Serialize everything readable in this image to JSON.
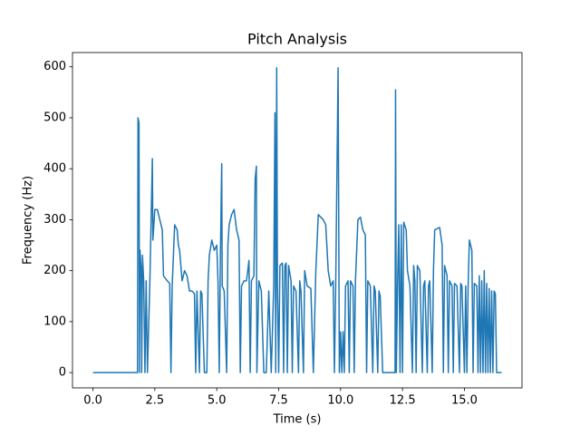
{
  "chart_data": {
    "type": "line",
    "title": "Pitch Analysis",
    "xlabel": "Time (s)",
    "ylabel": "Frequency (Hz)",
    "color": "#1f77b4",
    "x": [
      0,
      1.8,
      1.82,
      1.86,
      1.88,
      1.9,
      1.95,
      1.97,
      2.0,
      2.05,
      2.1,
      2.15,
      2.2,
      2.3,
      2.4,
      2.42,
      2.5,
      2.6,
      2.7,
      2.8,
      2.85,
      3.0,
      3.1,
      3.15,
      3.2,
      3.3,
      3.4,
      3.45,
      3.5,
      3.6,
      3.7,
      3.8,
      3.9,
      4.0,
      4.1,
      4.15,
      4.2,
      4.3,
      4.35,
      4.4,
      4.5,
      4.6,
      4.65,
      4.7,
      4.8,
      4.9,
      5.0,
      5.05,
      5.1,
      5.15,
      5.2,
      5.22,
      5.3,
      5.4,
      5.45,
      5.5,
      5.6,
      5.7,
      5.8,
      5.9,
      5.95,
      6.0,
      6.1,
      6.2,
      6.3,
      6.35,
      6.4,
      6.5,
      6.55,
      6.6,
      6.62,
      6.7,
      6.8,
      6.9,
      7.0,
      7.1,
      7.2,
      7.3,
      7.35,
      7.38,
      7.42,
      7.45,
      7.5,
      7.55,
      7.65,
      7.7,
      7.75,
      7.8,
      7.85,
      7.9,
      8.0,
      8.05,
      8.1,
      8.2,
      8.3,
      8.35,
      8.4,
      8.5,
      8.55,
      8.65,
      8.8,
      8.9,
      9.0,
      9.1,
      9.3,
      9.4,
      9.5,
      9.6,
      9.7,
      9.75,
      9.8,
      9.9,
      9.95,
      10.0,
      10.05,
      10.1,
      10.15,
      10.2,
      10.3,
      10.35,
      10.4,
      10.5,
      10.55,
      10.6,
      10.7,
      10.8,
      10.9,
      11.0,
      11.05,
      11.1,
      11.2,
      11.3,
      11.35,
      11.4,
      11.5,
      11.55,
      11.6,
      11.7,
      12.2,
      12.22,
      12.25,
      12.3,
      12.35,
      12.4,
      12.45,
      12.5,
      12.55,
      12.65,
      12.7,
      12.8,
      12.9,
      12.95,
      13.0,
      13.05,
      13.1,
      13.2,
      13.3,
      13.35,
      13.4,
      13.5,
      13.55,
      13.6,
      13.7,
      13.75,
      13.8,
      14.0,
      14.1,
      14.15,
      14.2,
      14.3,
      14.35,
      14.4,
      14.5,
      14.55,
      14.6,
      14.7,
      14.8,
      14.85,
      14.9,
      15.0,
      15.05,
      15.1,
      15.15,
      15.2,
      15.3,
      15.35,
      15.4,
      15.5,
      15.55,
      15.6,
      15.65,
      15.7,
      15.75,
      15.8,
      15.85,
      15.9,
      15.95,
      16.0,
      16.05,
      16.1,
      16.15,
      16.2,
      16.25,
      16.3,
      16.5
    ],
    "values": [
      0,
      0,
      500,
      490,
      0,
      240,
      200,
      0,
      230,
      180,
      0,
      180,
      0,
      180,
      420,
      260,
      320,
      320,
      300,
      280,
      190,
      180,
      175,
      0,
      170,
      290,
      280,
      250,
      240,
      180,
      200,
      190,
      160,
      160,
      155,
      0,
      160,
      0,
      160,
      155,
      0,
      0,
      180,
      230,
      260,
      240,
      250,
      180,
      0,
      240,
      410,
      170,
      160,
      0,
      250,
      290,
      310,
      320,
      280,
      260,
      0,
      170,
      180,
      180,
      220,
      0,
      180,
      190,
      380,
      405,
      0,
      180,
      160,
      0,
      0,
      160,
      0,
      170,
      510,
      0,
      598,
      170,
      0,
      210,
      215,
      0,
      210,
      215,
      0,
      210,
      180,
      0,
      170,
      160,
      0,
      180,
      160,
      0,
      200,
      170,
      165,
      0,
      200,
      310,
      300,
      290,
      200,
      170,
      180,
      0,
      160,
      598,
      0,
      80,
      0,
      80,
      0,
      170,
      180,
      0,
      180,
      170,
      0,
      180,
      300,
      305,
      280,
      270,
      0,
      180,
      170,
      0,
      170,
      160,
      0,
      160,
      150,
      0,
      0,
      555,
      0,
      170,
      290,
      0,
      290,
      0,
      295,
      280,
      200,
      170,
      0,
      210,
      180,
      0,
      210,
      200,
      0,
      170,
      180,
      0,
      170,
      180,
      0,
      200,
      280,
      285,
      250,
      0,
      210,
      190,
      0,
      180,
      170,
      0,
      175,
      170,
      0,
      175,
      170,
      0,
      170,
      0,
      170,
      260,
      240,
      0,
      175,
      170,
      0,
      190,
      0,
      180,
      0,
      200,
      0,
      175,
      0,
      165,
      0,
      160,
      0,
      160,
      155,
      0,
      0
    ],
    "xlim": [
      -0.825,
      17.325
    ],
    "ylim": [
      -30,
      628
    ],
    "xticks": [
      {
        "value": 0,
        "label": "0.0"
      },
      {
        "value": 2.5,
        "label": "2.5"
      },
      {
        "value": 5,
        "label": "5.0"
      },
      {
        "value": 7.5,
        "label": "7.5"
      },
      {
        "value": 10,
        "label": "10.0"
      },
      {
        "value": 12.5,
        "label": "12.5"
      },
      {
        "value": 15,
        "label": "15.0"
      }
    ],
    "yticks": [
      0,
      100,
      200,
      300,
      400,
      500,
      600
    ]
  }
}
